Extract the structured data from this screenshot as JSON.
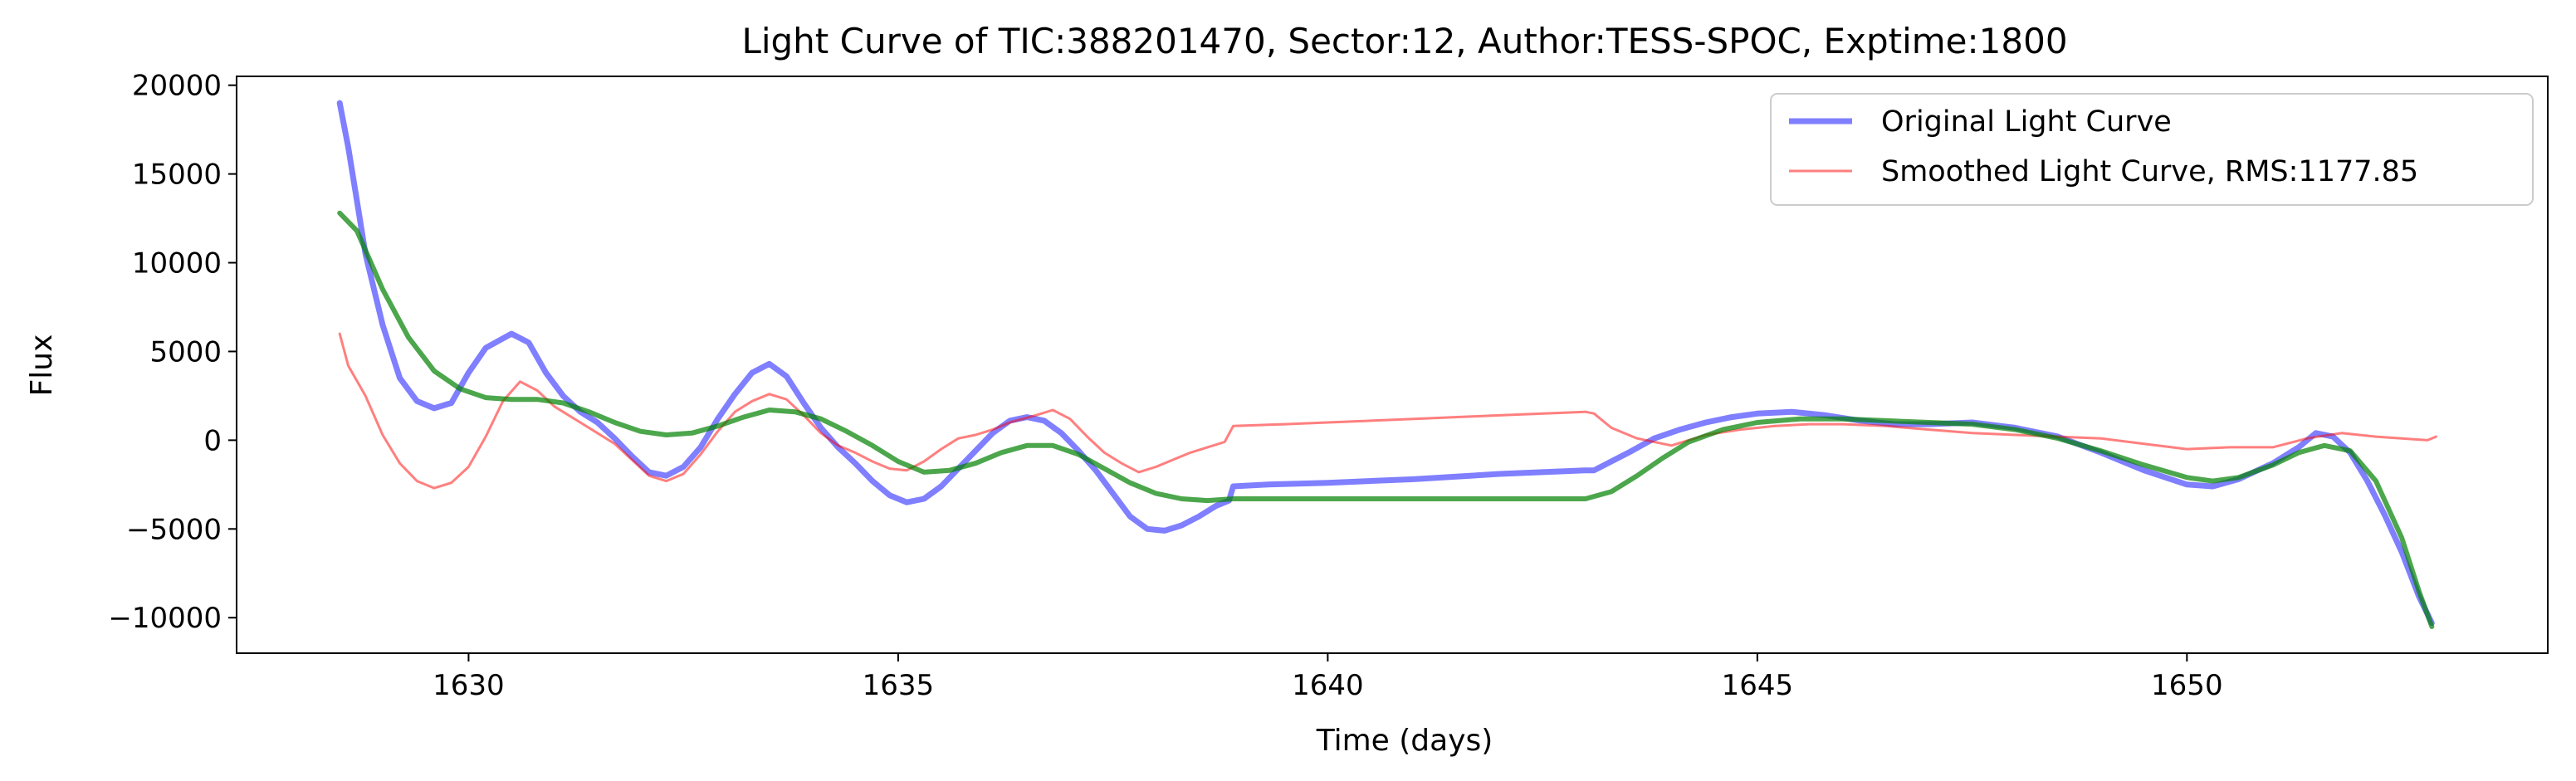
{
  "chart_data": {
    "type": "line",
    "title": "Light Curve of TIC:388201470, Sector:12, Author:TESS-SPOC, Exptime:1800",
    "xlabel": "Time (days)",
    "ylabel": "Flux",
    "xlim": [
      1627.3,
      1654.2
    ],
    "ylim": [
      -12000,
      20500
    ],
    "xticks": [
      1630,
      1635,
      1640,
      1645,
      1650
    ],
    "xtick_labels": [
      "1630",
      "1635",
      "1640",
      "1645",
      "1650"
    ],
    "yticks": [
      -10000,
      -5000,
      0,
      5000,
      10000,
      15000,
      20000
    ],
    "ytick_labels": [
      "−10000",
      "−5000",
      "0",
      "5000",
      "10000",
      "15000",
      "20000"
    ],
    "grid": false,
    "legend_position": "upper right",
    "series": [
      {
        "name": "Original Light Curve",
        "color": "#0000ff",
        "points": [
          [
            1628.5,
            19000
          ],
          [
            1628.6,
            16500
          ],
          [
            1628.7,
            13500
          ],
          [
            1628.8,
            10500
          ],
          [
            1629.0,
            6500
          ],
          [
            1629.2,
            3500
          ],
          [
            1629.4,
            2200
          ],
          [
            1629.6,
            1800
          ],
          [
            1629.8,
            2100
          ],
          [
            1630.0,
            3800
          ],
          [
            1630.2,
            5200
          ],
          [
            1630.5,
            6000
          ],
          [
            1630.7,
            5500
          ],
          [
            1630.9,
            3800
          ],
          [
            1631.1,
            2500
          ],
          [
            1631.3,
            1600
          ],
          [
            1631.5,
            1000
          ],
          [
            1631.7,
            100
          ],
          [
            1631.9,
            -900
          ],
          [
            1632.1,
            -1800
          ],
          [
            1632.3,
            -2000
          ],
          [
            1632.5,
            -1500
          ],
          [
            1632.7,
            -400
          ],
          [
            1632.9,
            1200
          ],
          [
            1633.1,
            2600
          ],
          [
            1633.3,
            3800
          ],
          [
            1633.5,
            4300
          ],
          [
            1633.7,
            3600
          ],
          [
            1633.9,
            2100
          ],
          [
            1634.1,
            700
          ],
          [
            1634.3,
            -400
          ],
          [
            1634.5,
            -1300
          ],
          [
            1634.7,
            -2300
          ],
          [
            1634.9,
            -3100
          ],
          [
            1635.1,
            -3500
          ],
          [
            1635.3,
            -3300
          ],
          [
            1635.5,
            -2600
          ],
          [
            1635.7,
            -1600
          ],
          [
            1635.9,
            -600
          ],
          [
            1636.1,
            400
          ],
          [
            1636.3,
            1100
          ],
          [
            1636.5,
            1300
          ],
          [
            1636.7,
            1100
          ],
          [
            1636.9,
            400
          ],
          [
            1637.1,
            -600
          ],
          [
            1637.3,
            -1700
          ],
          [
            1637.5,
            -3000
          ],
          [
            1637.7,
            -4300
          ],
          [
            1637.9,
            -5000
          ],
          [
            1638.1,
            -5100
          ],
          [
            1638.3,
            -4800
          ],
          [
            1638.5,
            -4300
          ],
          [
            1638.7,
            -3700
          ],
          [
            1638.85,
            -3400
          ],
          [
            1638.9,
            -2600
          ],
          [
            1639.3,
            -2500
          ],
          [
            1640.0,
            -2400
          ],
          [
            1641.0,
            -2200
          ],
          [
            1642.0,
            -1900
          ],
          [
            1643.0,
            -1700
          ],
          [
            1643.1,
            -1700
          ],
          [
            1643.3,
            -1200
          ],
          [
            1643.5,
            -700
          ],
          [
            1643.8,
            100
          ],
          [
            1644.1,
            600
          ],
          [
            1644.4,
            1000
          ],
          [
            1644.7,
            1300
          ],
          [
            1645.0,
            1500
          ],
          [
            1645.4,
            1600
          ],
          [
            1645.8,
            1400
          ],
          [
            1646.2,
            1100
          ],
          [
            1646.6,
            900
          ],
          [
            1647.0,
            900
          ],
          [
            1647.5,
            1000
          ],
          [
            1648.0,
            700
          ],
          [
            1648.5,
            200
          ],
          [
            1649.0,
            -700
          ],
          [
            1649.5,
            -1700
          ],
          [
            1650.0,
            -2500
          ],
          [
            1650.3,
            -2600
          ],
          [
            1650.6,
            -2200
          ],
          [
            1651.0,
            -1300
          ],
          [
            1651.3,
            -400
          ],
          [
            1651.5,
            400
          ],
          [
            1651.7,
            200
          ],
          [
            1651.9,
            -700
          ],
          [
            1652.1,
            -2300
          ],
          [
            1652.3,
            -4200
          ],
          [
            1652.5,
            -6300
          ],
          [
            1652.7,
            -8800
          ],
          [
            1652.85,
            -10300
          ]
        ]
      },
      {
        "name": "Smoothed Light Curve, RMS:1177.85",
        "color": "#ff0000",
        "points": [
          [
            1628.5,
            6000
          ],
          [
            1628.6,
            4200
          ],
          [
            1628.8,
            2500
          ],
          [
            1629.0,
            300
          ],
          [
            1629.2,
            -1300
          ],
          [
            1629.4,
            -2300
          ],
          [
            1629.6,
            -2700
          ],
          [
            1629.8,
            -2400
          ],
          [
            1630.0,
            -1500
          ],
          [
            1630.2,
            200
          ],
          [
            1630.4,
            2200
          ],
          [
            1630.6,
            3300
          ],
          [
            1630.8,
            2800
          ],
          [
            1631.0,
            1900
          ],
          [
            1631.3,
            1000
          ],
          [
            1631.5,
            400
          ],
          [
            1631.7,
            -200
          ],
          [
            1631.9,
            -1100
          ],
          [
            1632.1,
            -2000
          ],
          [
            1632.3,
            -2300
          ],
          [
            1632.5,
            -1900
          ],
          [
            1632.7,
            -800
          ],
          [
            1632.9,
            500
          ],
          [
            1633.1,
            1600
          ],
          [
            1633.3,
            2200
          ],
          [
            1633.5,
            2600
          ],
          [
            1633.7,
            2300
          ],
          [
            1633.9,
            1400
          ],
          [
            1634.1,
            400
          ],
          [
            1634.3,
            -300
          ],
          [
            1634.5,
            -700
          ],
          [
            1634.7,
            -1200
          ],
          [
            1634.9,
            -1600
          ],
          [
            1635.1,
            -1700
          ],
          [
            1635.3,
            -1200
          ],
          [
            1635.5,
            -500
          ],
          [
            1635.7,
            100
          ],
          [
            1635.9,
            300
          ],
          [
            1636.1,
            600
          ],
          [
            1636.3,
            1000
          ],
          [
            1636.6,
            1400
          ],
          [
            1636.8,
            1700
          ],
          [
            1637.0,
            1200
          ],
          [
            1637.2,
            200
          ],
          [
            1637.4,
            -700
          ],
          [
            1637.6,
            -1300
          ],
          [
            1637.8,
            -1800
          ],
          [
            1638.0,
            -1500
          ],
          [
            1638.2,
            -1100
          ],
          [
            1638.4,
            -700
          ],
          [
            1638.6,
            -400
          ],
          [
            1638.8,
            -100
          ],
          [
            1638.9,
            800
          ],
          [
            1639.5,
            900
          ],
          [
            1640.0,
            1000
          ],
          [
            1641.0,
            1200
          ],
          [
            1642.0,
            1400
          ],
          [
            1643.0,
            1600
          ],
          [
            1643.1,
            1500
          ],
          [
            1643.3,
            700
          ],
          [
            1643.6,
            100
          ],
          [
            1644.0,
            -300
          ],
          [
            1644.4,
            300
          ],
          [
            1644.8,
            600
          ],
          [
            1645.2,
            800
          ],
          [
            1645.6,
            900
          ],
          [
            1646.0,
            900
          ],
          [
            1646.5,
            800
          ],
          [
            1647.0,
            600
          ],
          [
            1647.5,
            400
          ],
          [
            1648.0,
            300
          ],
          [
            1648.5,
            200
          ],
          [
            1649.0,
            100
          ],
          [
            1649.5,
            -200
          ],
          [
            1650.0,
            -500
          ],
          [
            1650.5,
            -400
          ],
          [
            1651.0,
            -400
          ],
          [
            1651.4,
            100
          ],
          [
            1651.8,
            400
          ],
          [
            1652.2,
            200
          ],
          [
            1652.5,
            100
          ],
          [
            1652.8,
            0
          ],
          [
            1652.9,
            200
          ]
        ]
      },
      {
        "name": "",
        "color": "#008000",
        "points": [
          [
            1628.5,
            12800
          ],
          [
            1628.7,
            11800
          ],
          [
            1629.0,
            8500
          ],
          [
            1629.3,
            5800
          ],
          [
            1629.6,
            3900
          ],
          [
            1629.9,
            2900
          ],
          [
            1630.2,
            2400
          ],
          [
            1630.5,
            2300
          ],
          [
            1630.8,
            2300
          ],
          [
            1631.1,
            2100
          ],
          [
            1631.4,
            1600
          ],
          [
            1631.7,
            1000
          ],
          [
            1632.0,
            500
          ],
          [
            1632.3,
            300
          ],
          [
            1632.6,
            400
          ],
          [
            1632.9,
            800
          ],
          [
            1633.2,
            1300
          ],
          [
            1633.5,
            1700
          ],
          [
            1633.8,
            1600
          ],
          [
            1634.1,
            1200
          ],
          [
            1634.4,
            500
          ],
          [
            1634.7,
            -300
          ],
          [
            1635.0,
            -1200
          ],
          [
            1635.3,
            -1800
          ],
          [
            1635.6,
            -1700
          ],
          [
            1635.9,
            -1300
          ],
          [
            1636.2,
            -700
          ],
          [
            1636.5,
            -300
          ],
          [
            1636.8,
            -300
          ],
          [
            1637.1,
            -800
          ],
          [
            1637.4,
            -1600
          ],
          [
            1637.7,
            -2400
          ],
          [
            1638.0,
            -3000
          ],
          [
            1638.3,
            -3300
          ],
          [
            1638.6,
            -3400
          ],
          [
            1638.9,
            -3300
          ],
          [
            1640.0,
            -3300
          ],
          [
            1641.0,
            -3300
          ],
          [
            1642.0,
            -3300
          ],
          [
            1643.0,
            -3300
          ],
          [
            1643.3,
            -2900
          ],
          [
            1643.6,
            -2000
          ],
          [
            1643.9,
            -1000
          ],
          [
            1644.2,
            -100
          ],
          [
            1644.6,
            600
          ],
          [
            1645.0,
            1000
          ],
          [
            1645.5,
            1200
          ],
          [
            1646.0,
            1200
          ],
          [
            1646.5,
            1100
          ],
          [
            1647.0,
            1000
          ],
          [
            1647.5,
            900
          ],
          [
            1648.0,
            600
          ],
          [
            1648.5,
            100
          ],
          [
            1649.0,
            -600
          ],
          [
            1649.5,
            -1400
          ],
          [
            1650.0,
            -2100
          ],
          [
            1650.3,
            -2300
          ],
          [
            1650.6,
            -2100
          ],
          [
            1651.0,
            -1400
          ],
          [
            1651.3,
            -700
          ],
          [
            1651.6,
            -300
          ],
          [
            1651.9,
            -600
          ],
          [
            1652.2,
            -2300
          ],
          [
            1652.5,
            -5500
          ],
          [
            1652.7,
            -8500
          ],
          [
            1652.85,
            -10500
          ]
        ]
      }
    ]
  }
}
